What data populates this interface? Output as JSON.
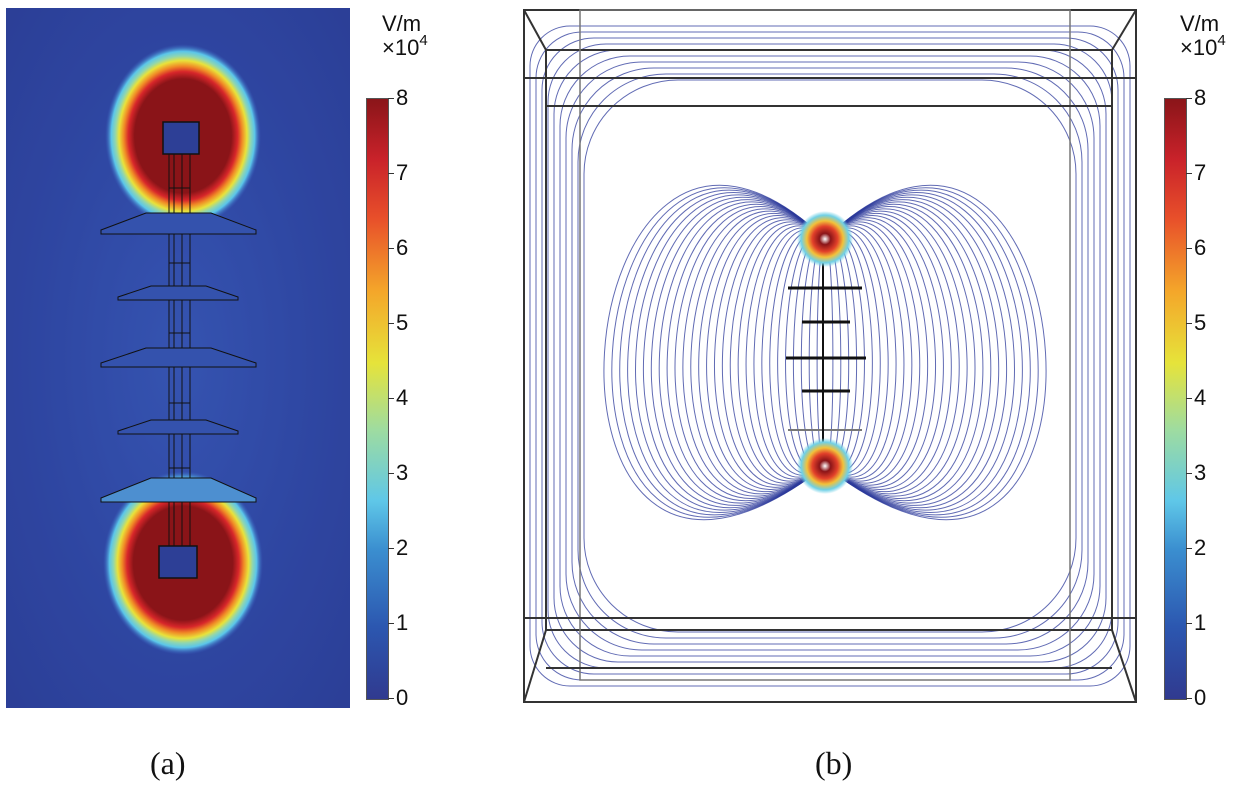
{
  "panel_a": {
    "caption": "(a)",
    "colorbar": {
      "unit": "V/m",
      "scale_base": "×10",
      "scale_exp": "4",
      "ticks": [
        "8",
        "7",
        "6",
        "5",
        "4",
        "3",
        "2",
        "1",
        "0"
      ]
    }
  },
  "panel_b": {
    "caption": "(b)",
    "colorbar": {
      "unit": "V/m",
      "scale_base": "×10",
      "scale_exp": "4",
      "ticks": [
        "8",
        "7",
        "6",
        "5",
        "4",
        "3",
        "2",
        "1",
        "0"
      ]
    }
  },
  "colors": {
    "field_low": "#2d3f96",
    "field_high": "#8b1418",
    "streamline": "#2c3a9b"
  }
}
